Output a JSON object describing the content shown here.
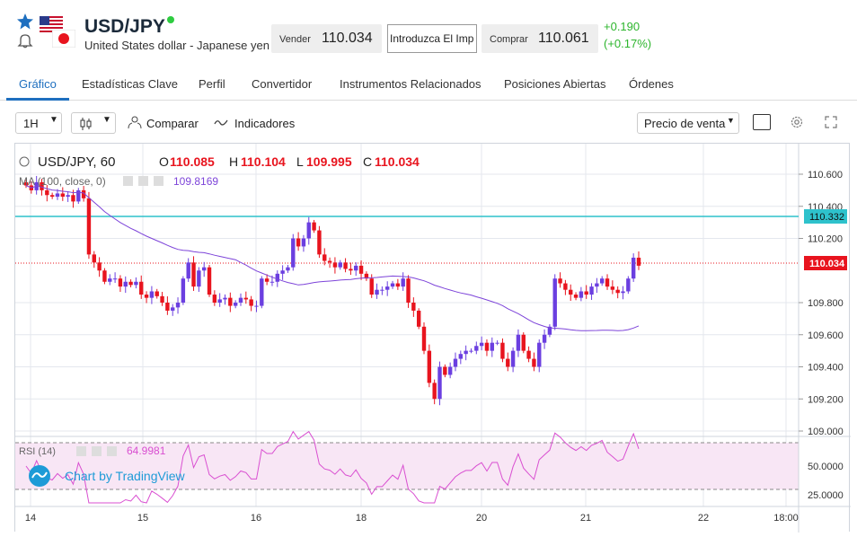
{
  "header": {
    "symbol": "USD/JPY",
    "name": "United States dollar - Japanese yen",
    "sell_label": "Vender",
    "sell_price": "110.034",
    "amount_placeholder": "Introduzca El Imp",
    "buy_label": "Comprar",
    "buy_price": "110.061",
    "change_abs": "+0.190",
    "change_pct": "(+0.17%)",
    "icons": [
      "star-icon",
      "alert-bell-icon",
      "us-flag-icon",
      "japan-flag-icon",
      "market-open-dot"
    ]
  },
  "tabs": [
    {
      "label": "Gráfico",
      "active": true
    },
    {
      "label": "Estadísticas Clave"
    },
    {
      "label": "Perfil"
    },
    {
      "label": "Convertidor"
    },
    {
      "label": "Instrumentos Relacionados"
    },
    {
      "label": "Posiciones Abiertas"
    },
    {
      "label": "Órdenes"
    }
  ],
  "toolbar": {
    "interval": "1H",
    "compare_label": "Comparar",
    "indicators_label": "Indicadores",
    "price_type": "Precio de venta"
  },
  "chart": {
    "legend_symbol": "USD/JPY, 60",
    "o_label": "O",
    "o_value": "110.085",
    "h_label": "H",
    "h_value": "110.104",
    "l_label": "L",
    "l_value": "109.995",
    "c_label": "C",
    "c_value": "110.034",
    "ma_label": "MA (100, close, 0)",
    "ma_value": "109.8169",
    "rsi_label": "RSI (14)",
    "rsi_value": "64.9981",
    "watermark": "Chart by TradingView",
    "price_ticks": [
      "110.600",
      "110.400",
      "110.200",
      "109.800",
      "109.600",
      "109.400",
      "109.200",
      "109.000"
    ],
    "price_tick_values": [
      110.6,
      110.4,
      110.2,
      109.8,
      109.6,
      109.4,
      109.2,
      109.0
    ],
    "last_price_badge": "110.034",
    "hline_badge": "110.332",
    "rsi_ticks": [
      "50.0000",
      "25.0000"
    ],
    "rsi_tick_values": [
      50,
      25
    ],
    "time_ticks": [
      "14",
      "15",
      "16",
      "18",
      "20",
      "21",
      "22",
      "18:00"
    ],
    "colors": {
      "up": "#6b3fe0",
      "down": "#e8141e",
      "ma": "#7d44d9",
      "hline": "#2ec2cc",
      "rsi": "#d94fd1",
      "rsi_bg": "#f8e6f5",
      "accent": "#1e6fbf"
    }
  },
  "chart_data": {
    "type": "candlestick",
    "title": "USD/JPY, 60",
    "y_range": [
      109.0,
      110.7
    ],
    "series_close": [
      110.53,
      110.5,
      110.55,
      110.5,
      110.47,
      110.46,
      110.48,
      110.46,
      110.47,
      110.43,
      110.5,
      110.45,
      110.1,
      110.05,
      110.0,
      109.93,
      109.95,
      109.95,
      109.9,
      109.93,
      109.91,
      109.93,
      109.85,
      109.83,
      109.87,
      109.84,
      109.8,
      109.75,
      109.77,
      109.8,
      109.95,
      110.05,
      109.9,
      110.0,
      110.02,
      109.85,
      109.8,
      109.82,
      109.83,
      109.78,
      109.8,
      109.83,
      109.82,
      109.78,
      109.78,
      109.95,
      109.93,
      109.93,
      109.98,
      110.0,
      110.02,
      110.2,
      110.15,
      110.2,
      110.3,
      110.25,
      110.1,
      110.06,
      110.05,
      110.02,
      110.05,
      110.01,
      110.0,
      110.03,
      109.98,
      109.95,
      109.85,
      109.88,
      109.88,
      109.9,
      109.92,
      109.9,
      109.95,
      109.8,
      109.75,
      109.65,
      109.5,
      109.3,
      109.2,
      109.4,
      109.35,
      109.4,
      109.45,
      109.48,
      109.5,
      109.5,
      109.53,
      109.55,
      109.5,
      109.55,
      109.55,
      109.45,
      109.4,
      109.5,
      109.6,
      109.5,
      109.45,
      109.4,
      109.55,
      109.6,
      109.65,
      109.95,
      109.92,
      109.88,
      109.85,
      109.83,
      109.87,
      109.85,
      109.9,
      109.92,
      109.95,
      109.9,
      109.88,
      109.86,
      109.87,
      109.95,
      110.08,
      110.03
    ],
    "ma_value": 109.8169,
    "rsi_last": 64.9981,
    "x_labels": [
      "14",
      "15",
      "16",
      "18",
      "20",
      "21",
      "22",
      "18:00"
    ]
  }
}
